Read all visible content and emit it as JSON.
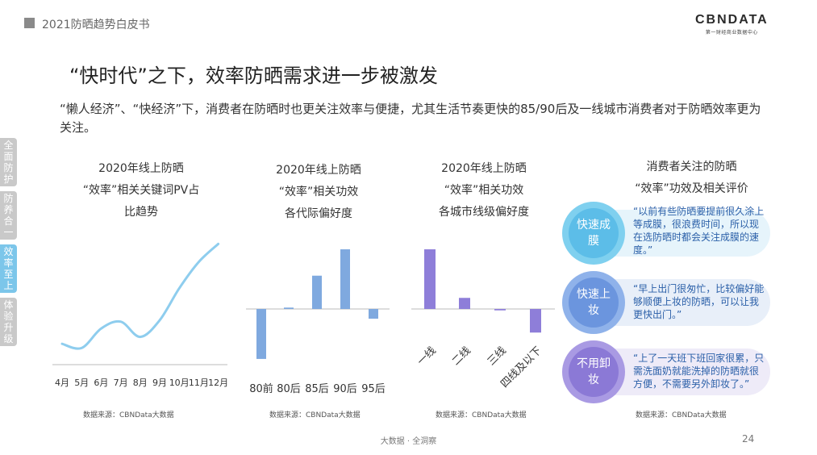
{
  "header": {
    "report_title": "2021防晒趋势白皮书"
  },
  "logo": {
    "main": "CBNDATA",
    "sub": "第一财经商业数据中心"
  },
  "page_title": "“快时代”之下，效率防晒需求进一步被激发",
  "intro": "“懒人经济”、“快经济”下，消费者在防晒时也更关注效率与便捷，尤其生活节奏更快的85/90后及一线城市消费者对于防晒效率更为关注。",
  "side_nav": [
    {
      "label": "全面防护",
      "active": false
    },
    {
      "label": "防养合一",
      "active": false
    },
    {
      "label": "效率至上",
      "active": true
    },
    {
      "label": "体验升级",
      "active": false
    }
  ],
  "chart_titles": {
    "trend": [
      "2020年线上防晒",
      "“效率”相关关键词PV占",
      "比趋势"
    ],
    "generation": [
      "2020年线上防晒",
      "“效率”相关功效",
      "各代际偏好度"
    ],
    "city": [
      "2020年线上防晒",
      "“效率”相关功效",
      "各城市线级偏好度"
    ],
    "quotes": [
      "消费者关注的防晒",
      "“效率”功效及相关评价"
    ]
  },
  "source_label": "数据来源：CBNData大数据",
  "colors": {
    "line": "#8ecdee",
    "generation_bar": "#7fa9df",
    "city_bar": "#8e7ed9",
    "axis": "#bbbbbb"
  },
  "chart_data": [
    {
      "type": "line",
      "categories": [
        "4月",
        "5月",
        "6月",
        "7月",
        "8月",
        "9月",
        "10月",
        "11月",
        "12月"
      ],
      "values": [
        0.15,
        0.12,
        0.26,
        0.31,
        0.2,
        0.32,
        0.55,
        0.74,
        0.87
      ],
      "ylim": [
        0,
        1
      ],
      "grid": false
    },
    {
      "type": "bar",
      "categories": [
        "80前",
        "80后",
        "85后",
        "90后",
        "95后"
      ],
      "values": [
        -0.72,
        0.02,
        0.48,
        0.86,
        -0.14
      ],
      "ylim": [
        -1,
        1
      ]
    },
    {
      "type": "bar",
      "categories": [
        "一线",
        "二线",
        "三线",
        "四线及以下"
      ],
      "values": [
        0.86,
        0.16,
        -0.02,
        -0.34
      ],
      "ylim": [
        -1,
        1
      ]
    }
  ],
  "quotes": [
    {
      "tag": "快速成膜",
      "text": "“以前有些防晒要提前很久涂上等成膜，很浪费时间，所以现在选防晒时都会关注成膜的速度。”",
      "circle": "#7fd0ef",
      "inner": "#5cbde8",
      "band": "#e6f4fb"
    },
    {
      "tag": "快速上妆",
      "text": "“早上出门很匆忙，比较偏好能够顺便上妆的防晒，可以让我更快出门。”",
      "circle": "#8fb2ea",
      "inner": "#6b95de",
      "band": "#e8eff9"
    },
    {
      "tag": "不用卸妆",
      "text": "“上了一天班下班回家很累，只需洗面奶就能洗掉的防晒就很方便，不需要另外卸妆了。”",
      "circle": "#a99ae3",
      "inner": "#8b79d6",
      "band": "#eeebf8"
    }
  ],
  "footer": {
    "text": "大数据 · 全洞察",
    "page": "24"
  }
}
